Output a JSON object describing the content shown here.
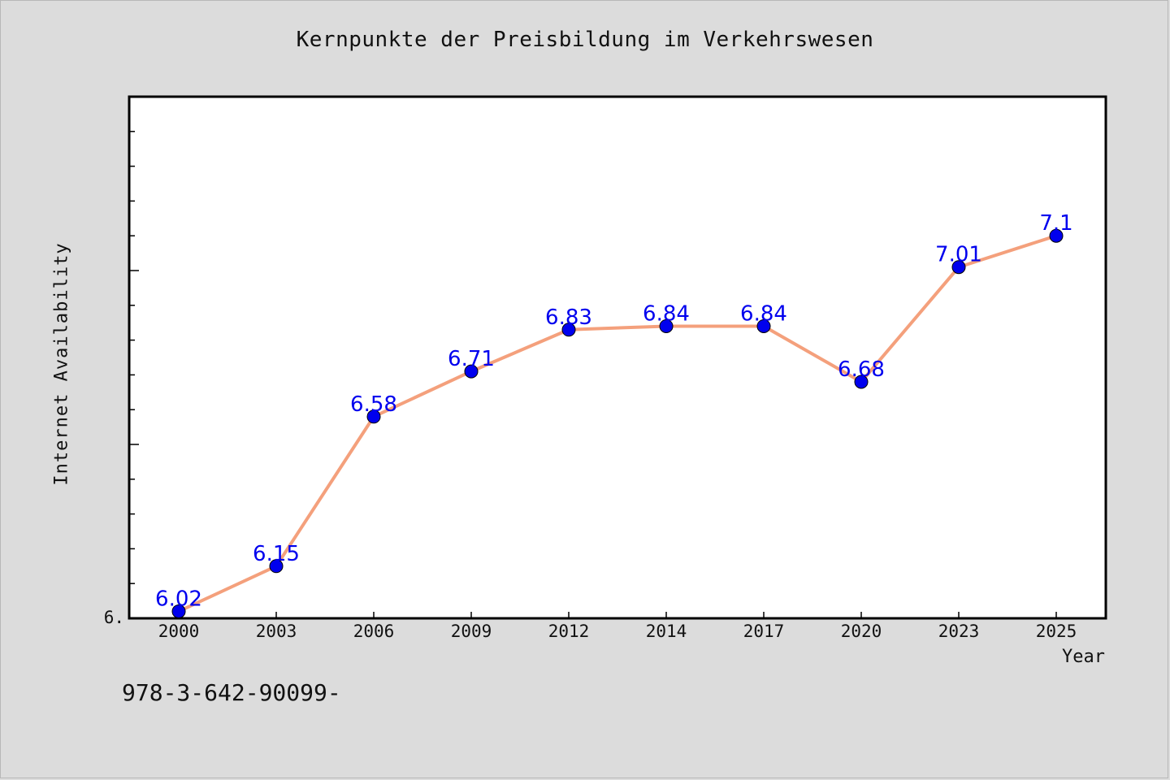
{
  "chart_data": {
    "type": "line",
    "title": "Kernpunkte der Preisbildung im Verkehrswesen",
    "xlabel": "Year",
    "ylabel": "Internet Availability",
    "categories": [
      "2000",
      "2003",
      "2006",
      "2009",
      "2012",
      "2014",
      "2017",
      "2020",
      "2023",
      "2025"
    ],
    "series": [
      {
        "values": [
          6.02,
          6.15,
          6.58,
          6.71,
          6.83,
          6.84,
          6.84,
          6.68,
          7.01,
          7.1
        ],
        "labels": [
          "6.02",
          "6.15",
          "6.58",
          "6.71",
          "6.83",
          "6.84",
          "6.84",
          "6.68",
          "7.01",
          "7.1"
        ]
      }
    ],
    "ylim": [
      6.0,
      7.5
    ],
    "y_tick_label": "6.",
    "grid": false,
    "legend": "none",
    "colors": {
      "line": "#f4a07c",
      "marker": "#0000ee",
      "label": "#0000ee",
      "background": "#dcdcdc",
      "plot_bg": "#ffffff"
    }
  },
  "footnote": "978-3-642-90099-"
}
